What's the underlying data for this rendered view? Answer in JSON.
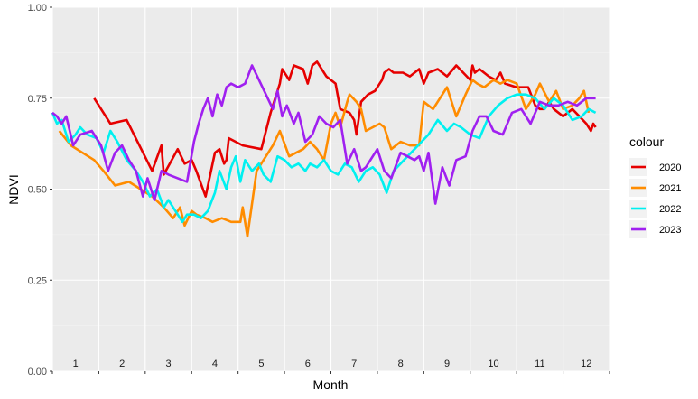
{
  "chart_data": {
    "type": "line",
    "xlabel": "Month",
    "ylabel": "NDVI",
    "ylim": [
      0,
      1
    ],
    "xlim": [
      1,
      13
    ],
    "y_ticks": [
      "0.00",
      "0.25",
      "0.50",
      "0.75",
      "1.00"
    ],
    "y_tick_values": [
      0,
      0.25,
      0.5,
      0.75,
      1.0
    ],
    "month_labels": [
      "1",
      "2",
      "3",
      "4",
      "5",
      "6",
      "7",
      "8",
      "9",
      "10",
      "11",
      "12"
    ],
    "grid": true,
    "legend": {
      "title": "colour",
      "position": "right"
    },
    "series": [
      {
        "name": "2020",
        "color": "#e60000",
        "x": [
          1.9,
          2.25,
          2.6,
          3.15,
          3.35,
          3.4,
          3.7,
          3.85,
          4.0,
          4.1,
          4.3,
          4.5,
          4.6,
          4.7,
          4.75,
          4.8,
          5.1,
          5.5,
          5.7,
          5.9,
          5.95,
          6.05,
          6.1,
          6.2,
          6.4,
          6.5,
          6.6,
          6.7,
          6.9,
          7.0,
          7.1,
          7.2,
          7.4,
          7.5,
          7.55,
          7.65,
          7.8,
          7.95,
          8.1,
          8.15,
          8.25,
          8.35,
          8.55,
          8.7,
          8.9,
          9.0,
          9.1,
          9.3,
          9.5,
          9.7,
          9.85,
          10.0,
          10.05,
          10.1,
          10.2,
          10.4,
          10.55,
          10.65,
          10.75,
          11.0,
          11.25,
          11.4,
          11.5,
          11.6,
          11.7,
          11.8,
          12.0,
          12.2,
          12.35,
          12.5,
          12.6,
          12.65,
          12.7
        ],
        "values": [
          0.75,
          0.68,
          0.69,
          0.55,
          0.62,
          0.54,
          0.61,
          0.57,
          0.58,
          0.55,
          0.48,
          0.6,
          0.61,
          0.57,
          0.58,
          0.64,
          0.62,
          0.61,
          0.71,
          0.79,
          0.83,
          0.81,
          0.8,
          0.84,
          0.83,
          0.79,
          0.84,
          0.85,
          0.81,
          0.8,
          0.79,
          0.72,
          0.71,
          0.69,
          0.65,
          0.74,
          0.76,
          0.77,
          0.8,
          0.82,
          0.83,
          0.82,
          0.82,
          0.81,
          0.83,
          0.79,
          0.82,
          0.83,
          0.81,
          0.84,
          0.82,
          0.8,
          0.84,
          0.82,
          0.83,
          0.81,
          0.8,
          0.82,
          0.79,
          0.78,
          0.78,
          0.73,
          0.72,
          0.72,
          0.74,
          0.72,
          0.7,
          0.72,
          0.7,
          0.68,
          0.66,
          0.68,
          0.67
        ]
      },
      {
        "name": "2021",
        "color": "#ff8c00",
        "x": [
          1.15,
          1.4,
          1.65,
          1.9,
          2.1,
          2.35,
          2.65,
          2.9,
          3.15,
          3.4,
          3.6,
          3.75,
          3.85,
          4.0,
          4.1,
          4.3,
          4.45,
          4.65,
          4.85,
          5.05,
          5.1,
          5.2,
          5.4,
          5.6,
          5.75,
          5.9,
          6.1,
          6.25,
          6.4,
          6.55,
          6.7,
          6.85,
          7.0,
          7.1,
          7.2,
          7.35,
          7.4,
          7.55,
          7.65,
          7.75,
          7.9,
          8.05,
          8.15,
          8.3,
          8.5,
          8.7,
          8.9,
          9.0,
          9.2,
          9.5,
          9.7,
          9.9,
          10.05,
          10.15,
          10.3,
          10.5,
          10.65,
          10.8,
          11.0,
          11.2,
          11.4,
          11.5,
          11.7,
          11.85,
          12.0,
          12.2,
          12.35,
          12.45,
          12.55
        ],
        "values": [
          0.66,
          0.62,
          0.6,
          0.58,
          0.55,
          0.51,
          0.52,
          0.5,
          0.48,
          0.45,
          0.42,
          0.45,
          0.4,
          0.44,
          0.43,
          0.42,
          0.41,
          0.42,
          0.41,
          0.41,
          0.45,
          0.37,
          0.55,
          0.59,
          0.62,
          0.66,
          0.59,
          0.6,
          0.61,
          0.63,
          0.61,
          0.58,
          0.68,
          0.71,
          0.67,
          0.74,
          0.76,
          0.74,
          0.72,
          0.66,
          0.67,
          0.68,
          0.67,
          0.61,
          0.63,
          0.62,
          0.62,
          0.74,
          0.72,
          0.78,
          0.7,
          0.76,
          0.8,
          0.79,
          0.78,
          0.8,
          0.79,
          0.8,
          0.79,
          0.72,
          0.76,
          0.79,
          0.74,
          0.77,
          0.72,
          0.73,
          0.75,
          0.77,
          0.71
        ]
      },
      {
        "name": "2022",
        "color": "#00f0f0",
        "x": [
          1.0,
          1.1,
          1.2,
          1.35,
          1.5,
          1.6,
          1.75,
          1.95,
          2.1,
          2.25,
          2.4,
          2.6,
          2.8,
          2.95,
          3.1,
          3.25,
          3.4,
          3.5,
          3.65,
          3.8,
          3.9,
          4.05,
          4.2,
          4.35,
          4.5,
          4.6,
          4.75,
          4.85,
          4.95,
          5.05,
          5.15,
          5.3,
          5.45,
          5.55,
          5.7,
          5.85,
          6.0,
          6.15,
          6.3,
          6.45,
          6.55,
          6.7,
          6.85,
          7.0,
          7.15,
          7.3,
          7.45,
          7.6,
          7.75,
          7.9,
          8.05,
          8.2,
          8.35,
          8.5,
          8.65,
          8.8,
          8.95,
          9.1,
          9.3,
          9.5,
          9.65,
          9.8,
          10.0,
          10.2,
          10.4,
          10.6,
          10.8,
          11.0,
          11.2,
          11.4,
          11.6,
          11.8,
          12.0,
          12.2,
          12.4,
          12.55,
          12.7
        ],
        "values": [
          0.71,
          0.68,
          0.69,
          0.63,
          0.65,
          0.67,
          0.65,
          0.64,
          0.6,
          0.66,
          0.63,
          0.58,
          0.55,
          0.52,
          0.48,
          0.5,
          0.45,
          0.47,
          0.44,
          0.41,
          0.43,
          0.43,
          0.42,
          0.44,
          0.49,
          0.55,
          0.5,
          0.56,
          0.59,
          0.52,
          0.58,
          0.55,
          0.57,
          0.54,
          0.52,
          0.59,
          0.58,
          0.56,
          0.57,
          0.55,
          0.57,
          0.56,
          0.58,
          0.55,
          0.54,
          0.57,
          0.56,
          0.52,
          0.55,
          0.56,
          0.54,
          0.49,
          0.55,
          0.57,
          0.59,
          0.61,
          0.63,
          0.65,
          0.69,
          0.66,
          0.68,
          0.67,
          0.65,
          0.64,
          0.7,
          0.73,
          0.75,
          0.76,
          0.76,
          0.75,
          0.72,
          0.75,
          0.73,
          0.69,
          0.7,
          0.72,
          0.71
        ]
      },
      {
        "name": "2023",
        "color": "#a020f0",
        "x": [
          1.0,
          1.1,
          1.2,
          1.3,
          1.45,
          1.6,
          1.85,
          2.05,
          2.2,
          2.35,
          2.5,
          2.65,
          2.8,
          2.95,
          3.05,
          3.2,
          3.35,
          3.5,
          3.7,
          3.9,
          4.05,
          4.15,
          4.25,
          4.35,
          4.45,
          4.55,
          4.65,
          4.75,
          4.85,
          5.0,
          5.15,
          5.3,
          5.45,
          5.6,
          5.75,
          5.85,
          5.95,
          6.05,
          6.2,
          6.3,
          6.45,
          6.6,
          6.75,
          6.9,
          7.05,
          7.2,
          7.35,
          7.5,
          7.65,
          7.75,
          7.85,
          8.0,
          8.15,
          8.3,
          8.5,
          8.65,
          8.8,
          8.9,
          9.0,
          9.1,
          9.25,
          9.4,
          9.55,
          9.7,
          9.9,
          10.05,
          10.2,
          10.35,
          10.5,
          10.7,
          10.9,
          11.1,
          11.3,
          11.5,
          11.7,
          11.9,
          12.1,
          12.3,
          12.5,
          12.7
        ],
        "values": [
          0.71,
          0.7,
          0.68,
          0.7,
          0.62,
          0.65,
          0.66,
          0.62,
          0.55,
          0.6,
          0.62,
          0.58,
          0.55,
          0.48,
          0.53,
          0.47,
          0.55,
          0.54,
          0.53,
          0.52,
          0.63,
          0.68,
          0.72,
          0.75,
          0.7,
          0.76,
          0.73,
          0.78,
          0.79,
          0.78,
          0.79,
          0.84,
          0.8,
          0.76,
          0.72,
          0.77,
          0.7,
          0.73,
          0.68,
          0.71,
          0.63,
          0.65,
          0.7,
          0.68,
          0.67,
          0.69,
          0.57,
          0.61,
          0.55,
          0.56,
          0.58,
          0.61,
          0.55,
          0.53,
          0.6,
          0.59,
          0.58,
          0.59,
          0.55,
          0.6,
          0.46,
          0.56,
          0.51,
          0.58,
          0.59,
          0.66,
          0.7,
          0.7,
          0.66,
          0.65,
          0.71,
          0.72,
          0.68,
          0.74,
          0.73,
          0.73,
          0.74,
          0.73,
          0.75,
          0.75
        ]
      }
    ]
  }
}
